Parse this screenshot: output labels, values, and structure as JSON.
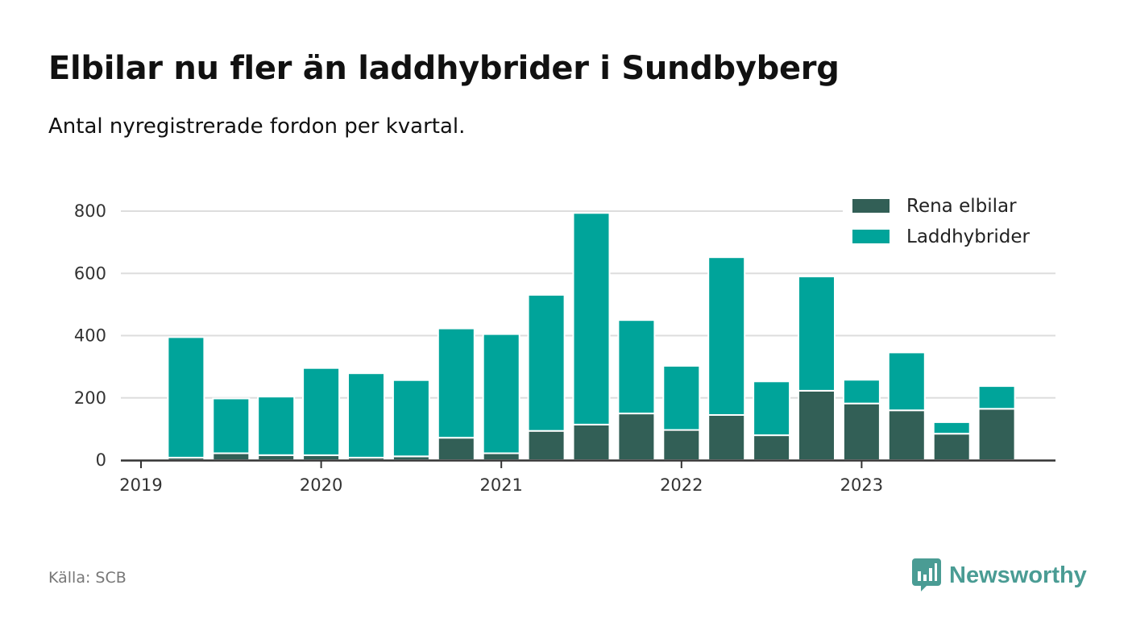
{
  "title": "Elbilar nu fler än laddhybrider i Sundbyberg",
  "subtitle": "Antal nyregistrerade fordon per kvartal.",
  "source": "Källa: SCB",
  "brand": "Newsworthy",
  "colors": {
    "elbilar": "#325f56",
    "laddhybrider": "#00a49a",
    "grid": "#dddddd",
    "axis": "#333333",
    "brand": "#4a9c94"
  },
  "chart_data": {
    "type": "bar",
    "stacked": true,
    "title": "Elbilar nu fler än laddhybrider i Sundbyberg",
    "subtitle": "Antal nyregistrerade fordon per kvartal.",
    "xlabel": "",
    "ylabel": "",
    "ylim": [
      0,
      800
    ],
    "yticks": [
      0,
      200,
      400,
      600,
      800
    ],
    "xticks": [
      "2019",
      "2020",
      "2021",
      "2022",
      "2023"
    ],
    "grid": true,
    "legend_position": "top-right",
    "categories": [
      "2019 Q2",
      "2019 Q3",
      "2019 Q4",
      "2020 Q1",
      "2020 Q2",
      "2020 Q3",
      "2020 Q4",
      "2021 Q1",
      "2021 Q2",
      "2021 Q3",
      "2021 Q4",
      "2022 Q1",
      "2022 Q2",
      "2022 Q3",
      "2022 Q4",
      "2023 Q1",
      "2023 Q2",
      "2023 Q3",
      "2023 Q4"
    ],
    "series": [
      {
        "name": "Rena elbilar",
        "color": "#325f56",
        "values": [
          8,
          22,
          16,
          16,
          8,
          12,
          72,
          22,
          94,
          114,
          150,
          97,
          145,
          80,
          223,
          182,
          160,
          85,
          165
        ]
      },
      {
        "name": "Laddhybrider",
        "color": "#00a49a",
        "values": [
          387,
          176,
          188,
          280,
          271,
          245,
          351,
          383,
          437,
          680,
          300,
          206,
          507,
          173,
          367,
          76,
          186,
          37,
          73
        ]
      }
    ]
  }
}
